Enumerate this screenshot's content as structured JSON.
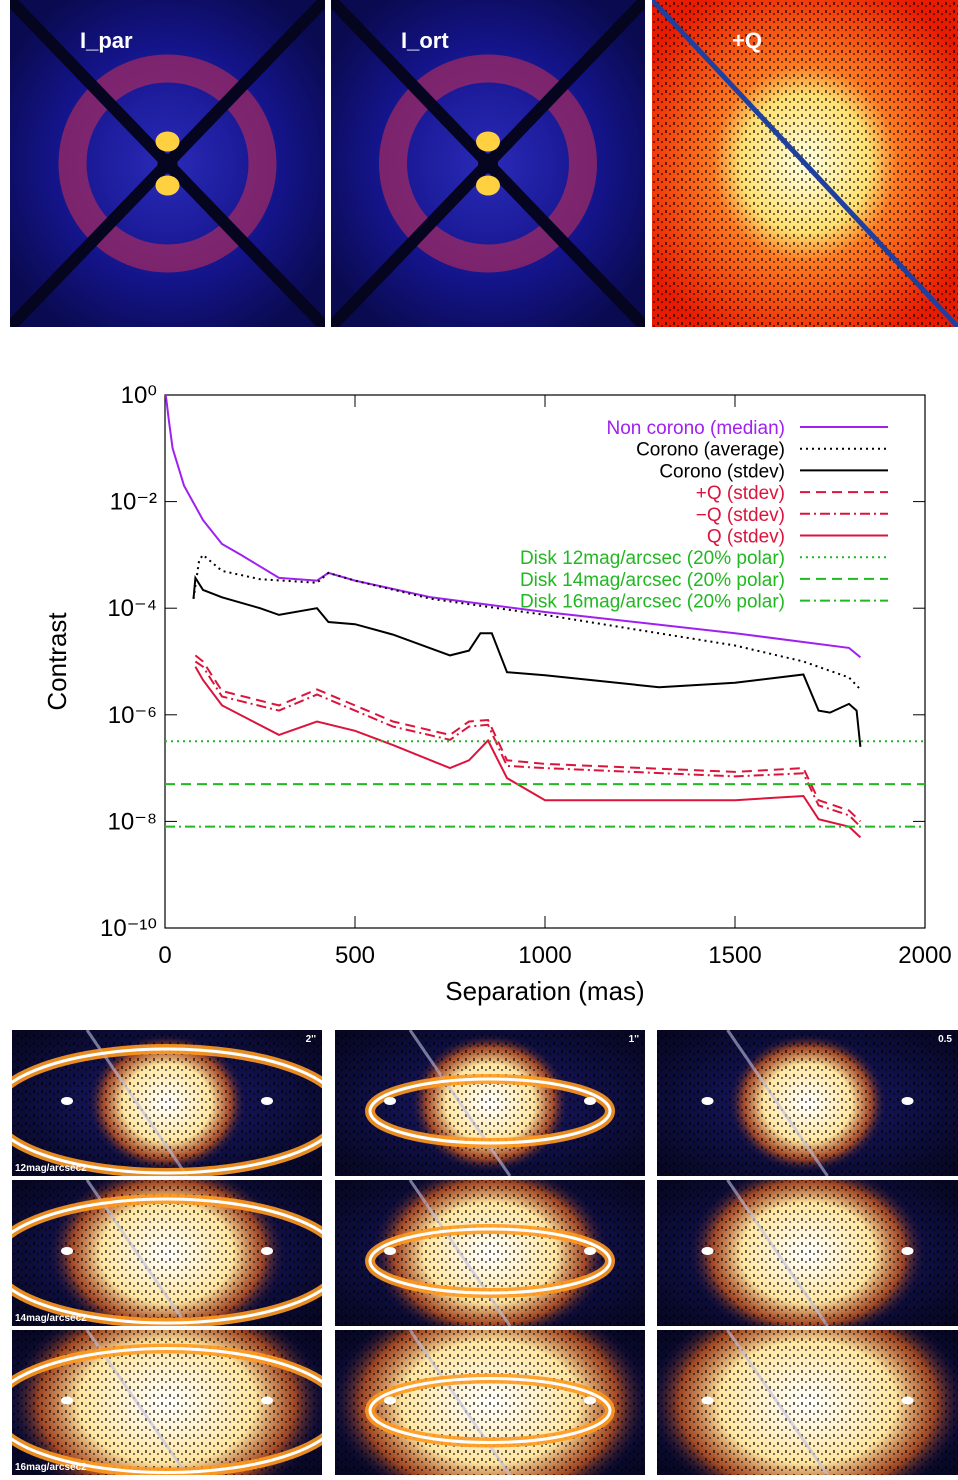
{
  "top_panels": [
    {
      "label": "I_par"
    },
    {
      "label": "I_ort"
    },
    {
      "label": "+Q"
    }
  ],
  "chart_data": {
    "type": "line",
    "xlabel": "Separation (mas)",
    "ylabel": "Contrast",
    "xlim": [
      0,
      2000
    ],
    "xticks": [
      0,
      500,
      1000,
      1500,
      2000
    ],
    "ylim": [
      1e-10,
      1
    ],
    "log_y": true,
    "yticks": [
      {
        "value": 1e-10,
        "label": "10⁻¹⁰"
      },
      {
        "value": 1e-08,
        "label": "10⁻⁸"
      },
      {
        "value": 1e-06,
        "label": "10⁻⁶"
      },
      {
        "value": 0.0001,
        "label": "10⁻⁴"
      },
      {
        "value": 0.01,
        "label": "10⁻²"
      },
      {
        "value": 1,
        "label": "10⁰"
      }
    ],
    "legend": "upper right",
    "series": [
      {
        "name": "Non corono (median)",
        "color": "#a020f0",
        "dash": "solid",
        "x": [
          2,
          10,
          20,
          50,
          100,
          150,
          200,
          300,
          400,
          430,
          500,
          700,
          1000,
          1500,
          1800,
          1830
        ],
        "values": [
          1,
          0.34,
          0.1,
          0.02,
          0.0045,
          0.0016,
          0.001,
          0.00037,
          0.00033,
          0.00046,
          0.00033,
          0.00016,
          8.5e-05,
          3.4e-05,
          1.8e-05,
          1.2e-05
        ]
      },
      {
        "name": "Corono (average)",
        "color": "#000000",
        "dash": "dotted",
        "x": [
          75,
          90,
          100,
          150,
          250,
          400,
          430,
          500,
          700,
          1000,
          1500,
          1680,
          1800,
          1830
        ],
        "values": [
          0.00015,
          0.0008,
          0.001,
          0.0005,
          0.00035,
          0.0003,
          0.00046,
          0.00033,
          0.00015,
          7.5e-05,
          2e-05,
          1e-05,
          5e-06,
          3e-06
        ]
      },
      {
        "name": "Corono (stdev)",
        "color": "#000000",
        "dash": "solid",
        "x": [
          75,
          80,
          100,
          150,
          250,
          300,
          400,
          430,
          500,
          600,
          750,
          800,
          830,
          860,
          900,
          1000,
          1300,
          1500,
          1680,
          1720,
          1750,
          1800,
          1820,
          1830
        ],
        "values": [
          0.00015,
          0.00037,
          0.00022,
          0.00016,
          0.0001,
          7.5e-05,
          0.0001,
          5.5e-05,
          5e-05,
          3.2e-05,
          1.3e-05,
          1.6e-05,
          3.4e-05,
          3.4e-05,
          6.3e-06,
          5.5e-06,
          3.3e-06,
          4e-06,
          5.7e-06,
          1.2e-06,
          1.1e-06,
          1.6e-06,
          1.2e-06,
          2.5e-07
        ]
      },
      {
        "name": "+Q (stdev)",
        "color": "#dc143c",
        "dash": "dashed",
        "x": [
          80,
          100,
          150,
          300,
          400,
          500,
          600,
          750,
          800,
          850,
          900,
          1000,
          1500,
          1680,
          1720,
          1800,
          1830
        ],
        "values": [
          1.3e-05,
          1e-05,
          2.8e-06,
          1.5e-06,
          3e-06,
          1.5e-06,
          7.5e-07,
          4.2e-07,
          7.5e-07,
          8e-07,
          1.4e-07,
          1.2e-07,
          8.5e-08,
          1e-07,
          2.5e-08,
          1.6e-08,
          1e-08
        ]
      },
      {
        "name": "−Q (stdev)",
        "color": "#dc143c",
        "dash": "dashdot",
        "x": [
          80,
          100,
          150,
          300,
          400,
          500,
          600,
          750,
          800,
          850,
          900,
          1000,
          1500,
          1680,
          1720,
          1800,
          1830
        ],
        "values": [
          1e-05,
          8e-06,
          2.2e-06,
          1.2e-06,
          2.4e-06,
          1.2e-06,
          6e-07,
          3.4e-07,
          6e-07,
          6.5e-07,
          1.1e-07,
          1e-07,
          7e-08,
          8e-08,
          2e-08,
          1.3e-08,
          8e-09
        ]
      },
      {
        "name": "Q (stdev)",
        "color": "#dc143c",
        "dash": "solid",
        "x": [
          80,
          100,
          150,
          300,
          400,
          500,
          600,
          750,
          800,
          850,
          900,
          1000,
          1500,
          1680,
          1720,
          1800,
          1830
        ],
        "values": [
          8e-06,
          4.5e-06,
          1.5e-06,
          4.2e-07,
          7.5e-07,
          5e-07,
          2.7e-07,
          1e-07,
          1.4e-07,
          3.3e-07,
          6.5e-08,
          2.5e-08,
          2.5e-08,
          3e-08,
          1.1e-08,
          8e-09,
          5e-09
        ]
      },
      {
        "name": "Disk 12mag/arcsec (20% polar)",
        "color": "#22b822",
        "dash": "dotted",
        "x": [
          0,
          2000
        ],
        "values": [
          3.2e-07,
          3.2e-07
        ]
      },
      {
        "name": "Disk 14mag/arcsec (20% polar)",
        "color": "#22b822",
        "dash": "dashed",
        "x": [
          0,
          2000
        ],
        "values": [
          5e-08,
          5e-08
        ]
      },
      {
        "name": "Disk 16mag/arcsec (20% polar)",
        "color": "#22b822",
        "dash": "dashdot",
        "x": [
          0,
          2000
        ],
        "values": [
          8e-09,
          8e-09
        ]
      }
    ]
  },
  "grid_panels": {
    "scale_labels": [
      "2''",
      "1''",
      "0.5"
    ],
    "row_labels": [
      "12mag/arcsec2",
      "14mag/arcsec2",
      "16mag/arcsec2"
    ]
  }
}
